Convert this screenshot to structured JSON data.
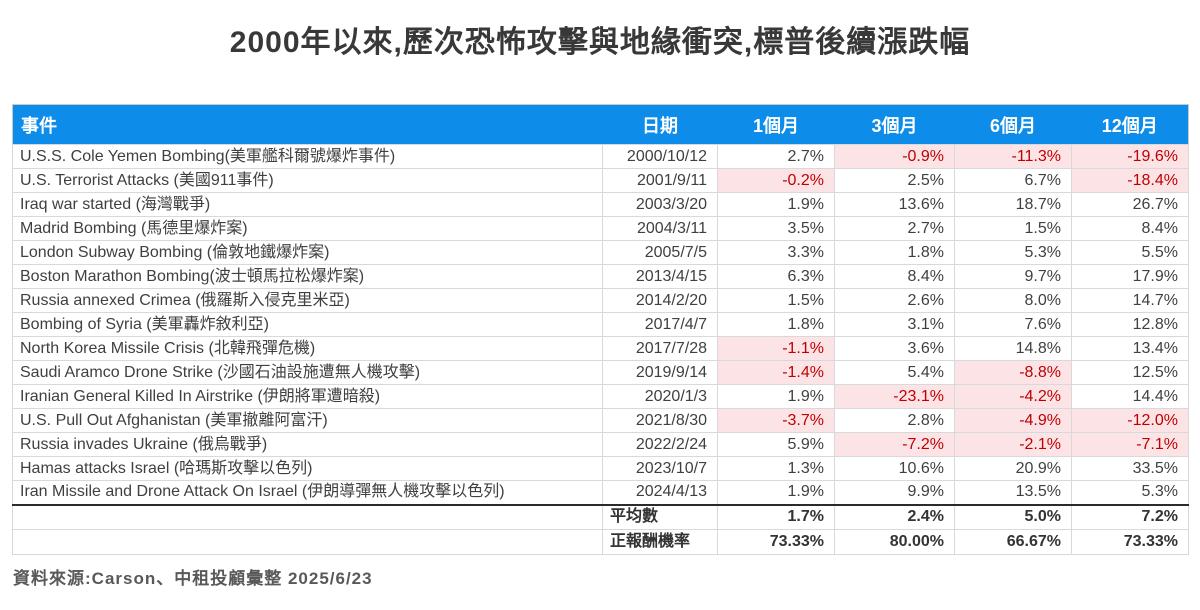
{
  "title": "2000年以來,歷次恐怖攻擊與地緣衝突,標普後續漲跌幅",
  "chart_data": {
    "type": "table",
    "title": "2000年以來,歷次恐怖攻擊與地緣衝突,標普後續漲跌幅",
    "columns": [
      "事件",
      "日期",
      "1個月",
      "3個月",
      "6個月",
      "12個月"
    ],
    "unit": "%",
    "rows": [
      [
        "U.S.S. Cole Yemen Bombing(美軍艦科爾號爆炸事件)",
        "2000/10/12",
        2.7,
        -0.9,
        -11.3,
        -19.6
      ],
      [
        "U.S. Terrorist Attacks (美國911事件)",
        "2001/9/11",
        -0.2,
        2.5,
        6.7,
        -18.4
      ],
      [
        "Iraq war started  (海灣戰爭)",
        "2003/3/20",
        1.9,
        13.6,
        18.7,
        26.7
      ],
      [
        "Madrid Bombing (馬德里爆炸案)",
        "2004/3/11",
        3.5,
        2.7,
        1.5,
        8.4
      ],
      [
        "London Subway Bombing (倫敦地鐵爆炸案)",
        "2005/7/5",
        3.3,
        1.8,
        5.3,
        5.5
      ],
      [
        "Boston Marathon Bombing(波士頓馬拉松爆炸案)",
        "2013/4/15",
        6.3,
        8.4,
        9.7,
        17.9
      ],
      [
        "Russia annexed Crimea (俄羅斯入侵克里米亞)",
        "2014/2/20",
        1.5,
        2.6,
        8.0,
        14.7
      ],
      [
        "Bombing of Syria (美軍轟炸敘利亞)",
        "2017/4/7",
        1.8,
        3.1,
        7.6,
        12.8
      ],
      [
        "North Korea Missile Crisis (北韓飛彈危機)",
        "2017/7/28",
        -1.1,
        3.6,
        14.8,
        13.4
      ],
      [
        "Saudi Aramco Drone Strike (沙國石油設施遭無人機攻擊)",
        "2019/9/14",
        -1.4,
        5.4,
        -8.8,
        12.5
      ],
      [
        "Iranian General Killed In Airstrike (伊朗將軍遭暗殺)",
        "2020/1/3",
        1.9,
        -23.1,
        -4.2,
        14.4
      ],
      [
        "U.S. Pull Out Afghanistan (美軍撤離阿富汗)",
        "2021/8/30",
        -3.7,
        2.8,
        -4.9,
        -12.0
      ],
      [
        "Russia invades Ukraine (俄烏戰爭)",
        "2022/2/24",
        5.9,
        -7.2,
        -2.1,
        -7.1
      ],
      [
        "Hamas attacks Israel (哈瑪斯攻擊以色列)",
        "2023/10/7",
        1.3,
        10.6,
        20.9,
        33.5
      ],
      [
        "Iran Missile and Drone Attack On Israel (伊朗導彈無人機攻擊以色列)",
        "2024/4/13",
        1.9,
        9.9,
        13.5,
        5.3
      ]
    ],
    "summary_rows": [
      [
        "平均數",
        1.7,
        2.4,
        5.0,
        7.2
      ],
      [
        "正報酬機率",
        73.33,
        80.0,
        66.67,
        73.33
      ]
    ],
    "layout_hints": {
      "negative_cells_highlighted": true,
      "value_alignment": "right",
      "header_style": "blue-bar"
    }
  },
  "footer": {
    "source": "資料來源:Carson、中租投顧彙整 2025/6/23"
  },
  "colors": {
    "header_bg": "#0d8ce9",
    "header_text": "#ffffff",
    "negative_bg": "#fce4e6",
    "negative_text": "#c00000",
    "body_text": "#404040"
  }
}
